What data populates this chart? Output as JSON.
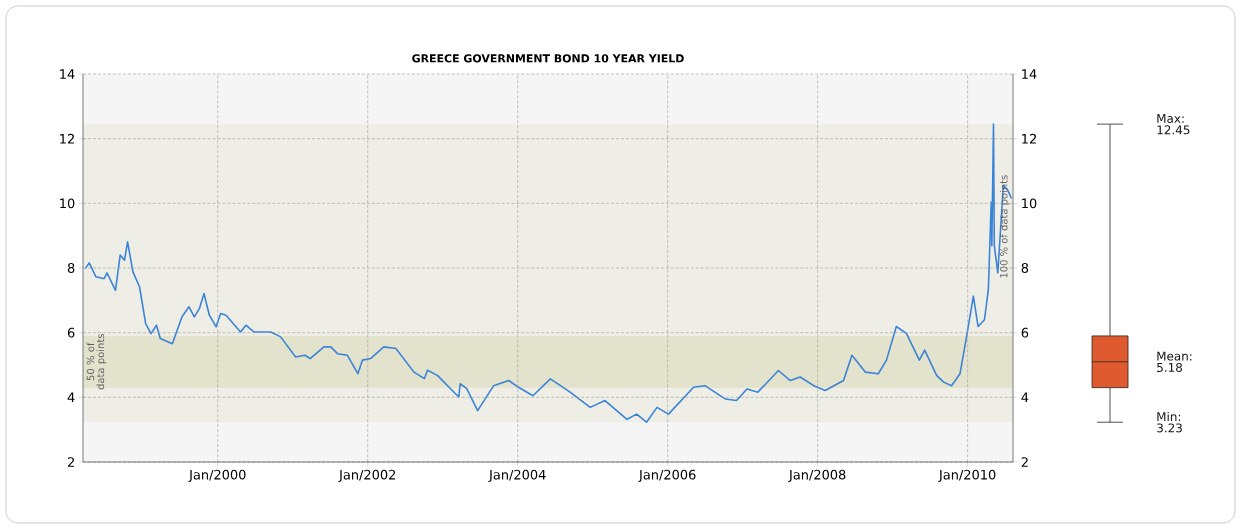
{
  "chart_data": [
    {
      "type": "line",
      "title": "GREECE GOVERNMENT BOND 10 YEAR YIELD",
      "color": "#3a84d8",
      "x": [
        "1998-03-27",
        "1998-04-15",
        "1998-05-18",
        "1998-06-27",
        "1998-07-11",
        "1998-08-21",
        "1998-09-13",
        "1998-10-04",
        "1998-10-19",
        "1998-11-14",
        "1998-12-16",
        "1999-01-15",
        "1999-02-10",
        "1999-03-09",
        "1999-03-27",
        "1999-05-25",
        "1999-07-11",
        "1999-08-14",
        "1999-09-09",
        "1999-10-04",
        "1999-10-26",
        "1999-11-21",
        "1999-12-24",
        "2000-01-15",
        "2000-02-10",
        "2000-04-22",
        "2000-05-18",
        "2000-06-27",
        "2000-09-16",
        "2000-11-03",
        "2001-01-15",
        "2001-02-28",
        "2001-03-27",
        "2001-06-02",
        "2001-07-05",
        "2001-08-07",
        "2001-09-24",
        "2001-11-14",
        "2001-12-06",
        "2002-01-15",
        "2002-03-20",
        "2002-05-18",
        "2002-08-14",
        "2002-10-04",
        "2002-10-19",
        "2002-12-06",
        "2003-03-20",
        "2003-03-27",
        "2003-04-28",
        "2003-06-20",
        "2003-09-06",
        "2003-11-18",
        "2004-01-05",
        "2004-03-16",
        "2004-06-09",
        "2004-09-13",
        "2004-12-20",
        "2005-03-02",
        "2005-06-17",
        "2005-08-03",
        "2005-09-20",
        "2005-11-10",
        "2006-01-05",
        "2006-05-07",
        "2006-07-01",
        "2006-10-08",
        "2006-12-02",
        "2007-01-22",
        "2007-03-16",
        "2007-06-24",
        "2007-08-21",
        "2007-10-08",
        "2007-12-13",
        "2008-02-07",
        "2008-05-07",
        "2008-06-17",
        "2008-08-21",
        "2008-10-23",
        "2008-12-02",
        "2009-01-19",
        "2009-03-09",
        "2009-05-11",
        "2009-06-06",
        "2009-08-03",
        "2009-09-06",
        "2009-10-15",
        "2009-11-25",
        "2009-12-27",
        "2010-01-29",
        "2010-02-21",
        "2010-03-24",
        "2010-04-12",
        "2010-04-26",
        "2010-04-29",
        "2010-05-07",
        "2010-05-11",
        "2010-05-28",
        "2010-06-24",
        "2010-07-15",
        "2010-08-03"
      ],
      "values": [
        7.98,
        8.16,
        7.73,
        7.67,
        7.85,
        7.31,
        8.4,
        8.24,
        8.81,
        7.88,
        7.42,
        6.28,
        5.97,
        6.23,
        5.82,
        5.66,
        6.49,
        6.8,
        6.49,
        6.75,
        7.21,
        6.54,
        6.18,
        6.59,
        6.54,
        6.02,
        6.23,
        6.02,
        6.02,
        5.87,
        5.25,
        5.3,
        5.2,
        5.56,
        5.56,
        5.35,
        5.3,
        4.73,
        5.15,
        5.2,
        5.56,
        5.51,
        4.78,
        4.58,
        4.84,
        4.68,
        4.01,
        4.42,
        4.27,
        3.59,
        4.36,
        4.52,
        4.31,
        4.05,
        4.57,
        4.16,
        3.69,
        3.9,
        3.32,
        3.48,
        3.23,
        3.69,
        3.48,
        4.31,
        4.36,
        3.95,
        3.9,
        4.26,
        4.16,
        4.83,
        4.52,
        4.63,
        4.36,
        4.21,
        4.52,
        5.3,
        4.78,
        4.73,
        5.15,
        6.19,
        5.98,
        5.15,
        5.46,
        4.68,
        4.47,
        4.36,
        4.73,
        5.88,
        7.13,
        6.19,
        6.4,
        7.33,
        10.04,
        8.69,
        12.45,
        8.69,
        7.85,
        10.56,
        10.41,
        10.15
      ],
      "xlim": [
        "1998-03-16",
        "2010-08-10"
      ],
      "xticks": [
        {
          "value": "2000-01-01",
          "label": "Jan/2000"
        },
        {
          "value": "2002-01-01",
          "label": "Jan/2002"
        },
        {
          "value": "2004-01-01",
          "label": "Jan/2004"
        },
        {
          "value": "2006-01-01",
          "label": "Jan/2006"
        },
        {
          "value": "2008-01-01",
          "label": "Jan/2008"
        },
        {
          "value": "2010-01-01",
          "label": "Jan/2010"
        }
      ],
      "ylim": [
        2,
        14
      ],
      "yticks": [
        2,
        4,
        6,
        8,
        10,
        12,
        14
      ],
      "y2lim": [
        2,
        14
      ],
      "y2ticks": [
        2,
        4,
        6,
        8,
        10,
        12,
        14
      ],
      "grid": true,
      "line_style": "solid",
      "bands": [
        {
          "axis": "y",
          "from": 4.3,
          "to": 5.9,
          "label": "50 % of data points",
          "color": "#e3e2cc"
        },
        {
          "axis": "y",
          "from": 3.23,
          "to": 12.45,
          "label": "100 % of data points",
          "color": "#efeee6"
        }
      ]
    },
    {
      "type": "other",
      "annotations": [
        "Max:",
        "12.45",
        "Mean:",
        "5.18",
        "Min:",
        "3.23"
      ]
    }
  ]
}
